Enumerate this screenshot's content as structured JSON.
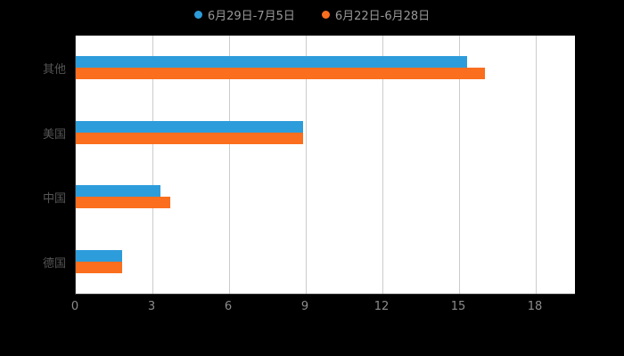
{
  "background_color": "#000000",
  "plot_style": {
    "plot_background": "#ffffff",
    "grid_color": "#cccccc",
    "axis_color": "#333333",
    "axis_label_color": "#8c8c8c",
    "category_label_color": "#555555",
    "legend_text_color": "#999999"
  },
  "chart_data": {
    "type": "bar",
    "orientation": "horizontal",
    "title": "",
    "categories": [
      "其他",
      "美国",
      "中国",
      "德国"
    ],
    "series": [
      {
        "name": "6月29日-7月5日",
        "color": "#2d9cdb",
        "values": [
          15.3,
          8.9,
          3.3,
          1.8
        ]
      },
      {
        "name": "6月22日-6月28日",
        "color": "#fa6e1e",
        "values": [
          16,
          8.9,
          3.7,
          1.8
        ]
      }
    ],
    "xlim": [
      0,
      18
    ],
    "x_ticks": [
      0,
      3,
      6,
      9,
      12,
      15,
      18
    ],
    "grid": true,
    "legend_position": "top"
  }
}
